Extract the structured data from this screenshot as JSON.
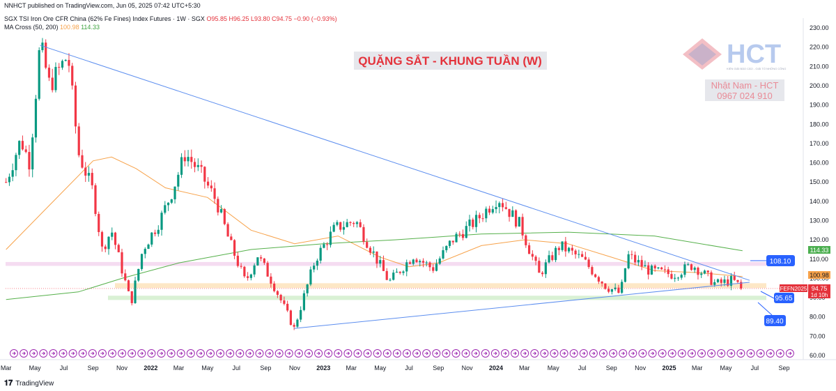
{
  "header": {
    "published": "NNHCT published on TradingView.com, Jun 05, 2025 07:42 UTC+5:30",
    "symbol": "SGX TSI Iron Ore CFR China (62% Fe Fines) Index Futures · 1W · SGX",
    "ohlc": "O95.85 H96.25 L93.80 C94.75 −0.90 (−0.93%)",
    "ma_label": "MA Cross (50, 200)",
    "ma_fast_value": "100.98",
    "ma_slow_value": "114.33"
  },
  "annotations": {
    "title": "QUẶNG SẮT - KHUNG TUẦN (W)",
    "logo_text": "HCT",
    "logo_subtext": "KIẾN GIẢI BÁO CÁO - GIẢI TỐ NHỮNG CÔNG",
    "author": "Nhật Nam - HCT",
    "phone": "0967 024 910"
  },
  "price_labels": {
    "level_high": "108.10",
    "level_mid": "95.65",
    "level_low": "89.40",
    "ma_slow": "114.33",
    "ma_fast": "100.98",
    "symbol_tag": "FEFN2025",
    "last_price": "94.75",
    "countdown": "1d 10h"
  },
  "footer": {
    "brand": "TradingView"
  },
  "colors": {
    "up": "#089981",
    "down": "#f23645",
    "ma_fast": "#f7a24a",
    "ma_slow": "#55b04a",
    "trendline": "#5b8def",
    "zone_pink": "#f3d3ee",
    "zone_orange": "#fde1b8",
    "zone_green": "#cfeec9",
    "label_blue": "#2962ff",
    "label_red": "#e4323b"
  },
  "chart_data": {
    "type": "candlestick",
    "timeframe": "1W",
    "y_axis": {
      "ticks": [
        60,
        70,
        80,
        90,
        100,
        110,
        120,
        130,
        140,
        150,
        160,
        170,
        180,
        190,
        200,
        210,
        220,
        230
      ],
      "range": [
        60,
        234
      ]
    },
    "x_axis": {
      "ticks": [
        "Mar",
        "May",
        "Jul",
        "Sep",
        "Nov",
        "2022",
        "Mar",
        "May",
        "Jul",
        "Sep",
        "Nov",
        "2023",
        "Mar",
        "May",
        "Jul",
        "Sep",
        "Nov",
        "2024",
        "Mar",
        "May",
        "Jul",
        "Sep",
        "Nov",
        "2025",
        "Mar",
        "May",
        "Jul",
        "Sep"
      ]
    },
    "price_path": [
      {
        "x": "2021-03",
        "y": 150
      },
      {
        "x": "2021-04",
        "y": 172
      },
      {
        "x": "2021-04-20",
        "y": 160
      },
      {
        "x": "2021-05-12",
        "y": 222
      },
      {
        "x": "2021-06",
        "y": 200
      },
      {
        "x": "2021-07-10",
        "y": 216
      },
      {
        "x": "2021-08",
        "y": 165
      },
      {
        "x": "2021-09-01",
        "y": 145
      },
      {
        "x": "2021-09-20",
        "y": 115
      },
      {
        "x": "2021-10-10",
        "y": 125
      },
      {
        "x": "2021-11-20",
        "y": 87
      },
      {
        "x": "2021-12-15",
        "y": 115
      },
      {
        "x": "2022-01-20",
        "y": 130
      },
      {
        "x": "2022-02-15",
        "y": 145
      },
      {
        "x": "2022-03-15",
        "y": 165
      },
      {
        "x": "2022-04-15",
        "y": 155
      },
      {
        "x": "2022-05-20",
        "y": 140
      },
      {
        "x": "2022-06-15",
        "y": 120
      },
      {
        "x": "2022-07-20",
        "y": 98
      },
      {
        "x": "2022-08-15",
        "y": 112
      },
      {
        "x": "2022-09-15",
        "y": 98
      },
      {
        "x": "2022-10-31",
        "y": 74
      },
      {
        "x": "2022-12-15",
        "y": 110
      },
      {
        "x": "2023-01-25",
        "y": 126
      },
      {
        "x": "2023-03-10",
        "y": 130
      },
      {
        "x": "2023-05-20",
        "y": 98
      },
      {
        "x": "2023-07-10",
        "y": 112
      },
      {
        "x": "2023-08-20",
        "y": 105
      },
      {
        "x": "2023-10-01",
        "y": 120
      },
      {
        "x": "2023-11-20",
        "y": 130
      },
      {
        "x": "2024-01-05",
        "y": 142
      },
      {
        "x": "2024-02-20",
        "y": 128
      },
      {
        "x": "2024-04-01",
        "y": 102
      },
      {
        "x": "2024-05-15",
        "y": 117
      },
      {
        "x": "2024-07-01",
        "y": 110
      },
      {
        "x": "2024-08-20",
        "y": 96
      },
      {
        "x": "2024-09-20",
        "y": 92
      },
      {
        "x": "2024-10-05",
        "y": 112
      },
      {
        "x": "2024-11-20",
        "y": 104
      },
      {
        "x": "2025-01-10",
        "y": 102
      },
      {
        "x": "2025-02-20",
        "y": 107
      },
      {
        "x": "2025-04-10",
        "y": 97
      },
      {
        "x": "2025-05-15",
        "y": 99
      },
      {
        "x": "2025-06-05",
        "y": 94.75
      }
    ],
    "ma_fast": {
      "name": "MA 50",
      "points": [
        {
          "x": "2021-03",
          "y": 115
        },
        {
          "x": "2021-06",
          "y": 138
        },
        {
          "x": "2021-09",
          "y": 161
        },
        {
          "x": "2021-10-10",
          "y": 163
        },
        {
          "x": "2021-12",
          "y": 157
        },
        {
          "x": "2022-02",
          "y": 147
        },
        {
          "x": "2022-05",
          "y": 142
        },
        {
          "x": "2022-08",
          "y": 125
        },
        {
          "x": "2022-11",
          "y": 118
        },
        {
          "x": "2023-02",
          "y": 122
        },
        {
          "x": "2023-05",
          "y": 111
        },
        {
          "x": "2023-07",
          "y": 106
        },
        {
          "x": "2023-09",
          "y": 108
        },
        {
          "x": "2023-12",
          "y": 117
        },
        {
          "x": "2024-03",
          "y": 120
        },
        {
          "x": "2024-06",
          "y": 118
        },
        {
          "x": "2024-09",
          "y": 111
        },
        {
          "x": "2024-12",
          "y": 104
        },
        {
          "x": "2025-03",
          "y": 103
        },
        {
          "x": "2025-06-05",
          "y": 100.98
        }
      ]
    },
    "ma_slow": {
      "name": "MA 200",
      "points": [
        {
          "x": "2021-03",
          "y": 89
        },
        {
          "x": "2021-08",
          "y": 93
        },
        {
          "x": "2021-11",
          "y": 100
        },
        {
          "x": "2022-03",
          "y": 108
        },
        {
          "x": "2022-08",
          "y": 115
        },
        {
          "x": "2023-01",
          "y": 118
        },
        {
          "x": "2023-06",
          "y": 120
        },
        {
          "x": "2023-12",
          "y": 123
        },
        {
          "x": "2024-06",
          "y": 124
        },
        {
          "x": "2024-12",
          "y": 122
        },
        {
          "x": "2025-06-05",
          "y": 114.33
        }
      ]
    },
    "trendlines": [
      {
        "from": {
          "x": "2021-05-12",
          "y": 221
        },
        "to": {
          "x": "2025-06-20",
          "y": 99
        }
      },
      {
        "from": {
          "x": "2022-10-31",
          "y": 74
        },
        "to": {
          "x": "2025-06-20",
          "y": 98
        }
      }
    ],
    "zones": [
      {
        "name": "resistance",
        "from": 106.5,
        "to": 108.5
      },
      {
        "name": "support",
        "from": 95,
        "to": 97.5
      },
      {
        "name": "support-low",
        "from": 88.8,
        "to": 91
      }
    ]
  }
}
